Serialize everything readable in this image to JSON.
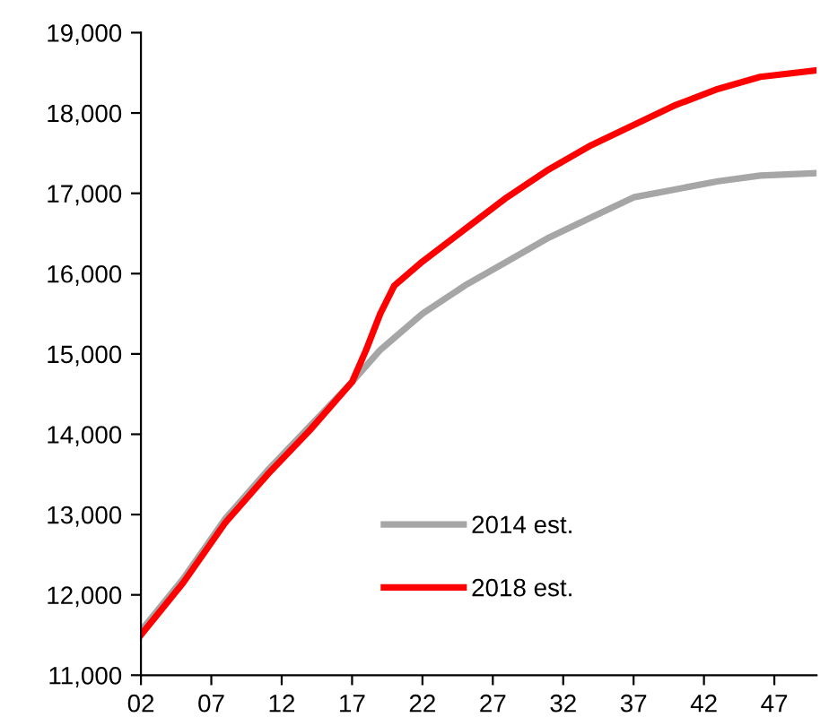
{
  "chart_data": {
    "type": "line",
    "xlim": [
      2002,
      2050
    ],
    "xticks": [
      {
        "value": 2002,
        "label": "02"
      },
      {
        "value": 2007,
        "label": "07"
      },
      {
        "value": 2012,
        "label": "12"
      },
      {
        "value": 2017,
        "label": "17"
      },
      {
        "value": 2022,
        "label": "22"
      },
      {
        "value": 2027,
        "label": "27"
      },
      {
        "value": 2032,
        "label": "32"
      },
      {
        "value": 2037,
        "label": "37"
      },
      {
        "value": 2042,
        "label": "42"
      },
      {
        "value": 2047,
        "label": "47"
      }
    ],
    "ylim": [
      11000,
      19000
    ],
    "yticks": [
      {
        "value": 11000,
        "label": "11,000"
      },
      {
        "value": 12000,
        "label": "12,000"
      },
      {
        "value": 13000,
        "label": "13,000"
      },
      {
        "value": 14000,
        "label": "14,000"
      },
      {
        "value": 15000,
        "label": "15,000"
      },
      {
        "value": 16000,
        "label": "16,000"
      },
      {
        "value": 17000,
        "label": "17,000"
      },
      {
        "value": 18000,
        "label": "18,000"
      },
      {
        "value": 19000,
        "label": "19,000"
      }
    ],
    "grid": false,
    "legend": "bottom",
    "marker": "none",
    "line_style": "solid",
    "series": [
      {
        "name": "2014 est.",
        "color": "#a6a6a6",
        "x": [
          2002,
          2005,
          2008,
          2011,
          2014,
          2017,
          2019,
          2022,
          2025,
          2028,
          2031,
          2034,
          2037,
          2040,
          2043,
          2046,
          2050
        ],
        "values": [
          11550,
          12200,
          12950,
          13550,
          14100,
          14650,
          15050,
          15500,
          15850,
          16150,
          16450,
          16700,
          16950,
          17050,
          17150,
          17220,
          17250
        ]
      },
      {
        "name": "2018 est.",
        "color": "#ff0000",
        "x": [
          2002,
          2005,
          2008,
          2011,
          2014,
          2017,
          2018,
          2019,
          2020,
          2022,
          2025,
          2028,
          2031,
          2034,
          2037,
          2040,
          2043,
          2046,
          2050
        ],
        "values": [
          11500,
          12150,
          12900,
          13500,
          14050,
          14650,
          15050,
          15500,
          15850,
          16150,
          16550,
          16950,
          17300,
          17600,
          17850,
          18100,
          18300,
          18450,
          18530
        ]
      }
    ]
  }
}
